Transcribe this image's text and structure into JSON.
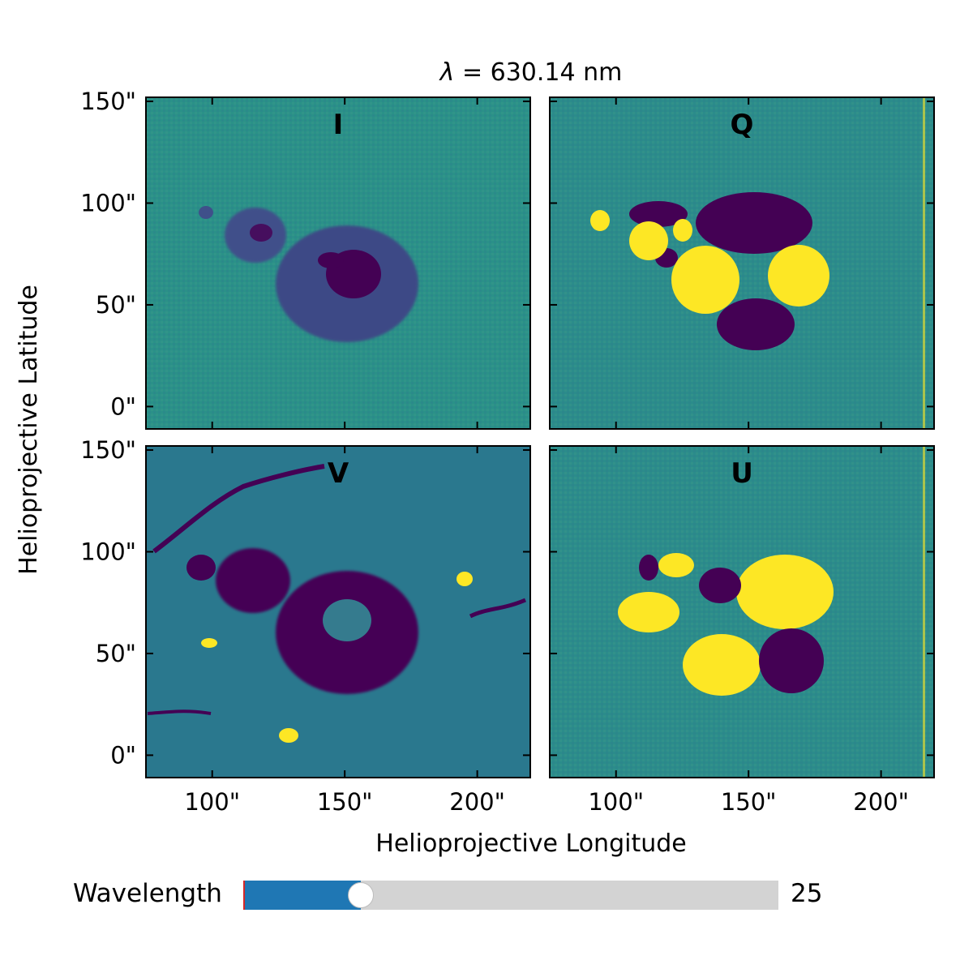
{
  "chart_data": {
    "type": "heatmap",
    "title_symbol": "λ",
    "title_rest": " = 630.14 nm",
    "xlabel": "Helioprojective Longitude",
    "ylabel": "Helioprojective Latitude",
    "xlim": [
      75,
      220
    ],
    "ylim": [
      -11,
      152
    ],
    "xticks": [
      100,
      150,
      200
    ],
    "yticks": [
      0,
      50,
      100,
      150
    ],
    "xtick_labels": [
      "100\"",
      "150\"",
      "200\""
    ],
    "ytick_labels": [
      "0\"",
      "50\"",
      "100\"",
      "150\""
    ],
    "colormap": "viridis",
    "colors": {
      "low": "#440154",
      "mid": "#2a788e",
      "field": "#21918c",
      "high": "#fde725"
    },
    "panels": [
      {
        "label": "I",
        "position": "top-left"
      },
      {
        "label": "Q",
        "position": "top-right"
      },
      {
        "label": "V",
        "position": "bottom-left"
      },
      {
        "label": "U",
        "position": "bottom-right"
      }
    ]
  },
  "slider": {
    "label": "Wavelength",
    "value": "25",
    "fraction": 0.22,
    "colors": {
      "fill": "#1f77b4",
      "track": "#d3d3d3",
      "init": "#d62728"
    }
  }
}
